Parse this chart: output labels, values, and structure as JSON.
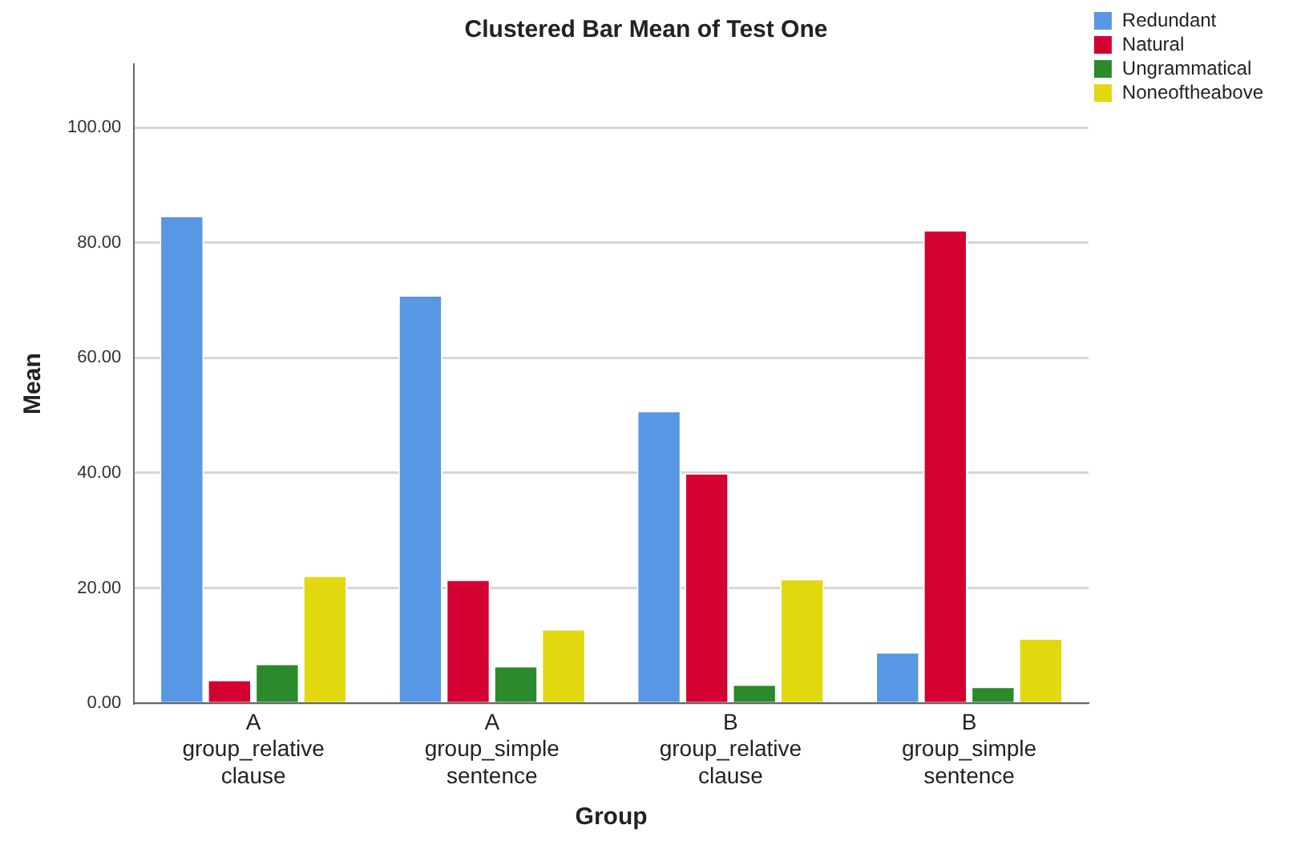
{
  "chart_data": {
    "type": "bar",
    "title": "Clustered Bar Mean of Test One",
    "xlabel": "Group",
    "ylabel": "Mean",
    "categories": [
      "A\ngroup_relative\nclause",
      "A\ngroup_simple\nsentence",
      "B\ngroup_relative\nclause",
      "B\ngroup_simple\nsentence"
    ],
    "series": [
      {
        "name": "Redundant",
        "color": "#5897e3",
        "values": [
          84.7,
          70.9,
          50.8,
          8.9
        ]
      },
      {
        "name": "Natural",
        "color": "#d50032",
        "values": [
          4.1,
          21.5,
          40.0,
          82.2
        ]
      },
      {
        "name": "Ungrammatical",
        "color": "#2b8a2b",
        "values": [
          6.9,
          6.5,
          3.3,
          2.9
        ]
      },
      {
        "name": "Noneoftheabove",
        "color": "#e2d810",
        "values": [
          22.2,
          12.9,
          21.6,
          11.3
        ]
      }
    ],
    "ylim": [
      0,
      111
    ],
    "yticks": [
      {
        "value": 0,
        "label": "0.00"
      },
      {
        "value": 20,
        "label": "20.00"
      },
      {
        "value": 40,
        "label": "40.00"
      },
      {
        "value": 60,
        "label": "60.00"
      },
      {
        "value": 80,
        "label": "80.00"
      },
      {
        "value": 100,
        "label": "100.00"
      }
    ],
    "grid": "y",
    "legend": "top right"
  }
}
